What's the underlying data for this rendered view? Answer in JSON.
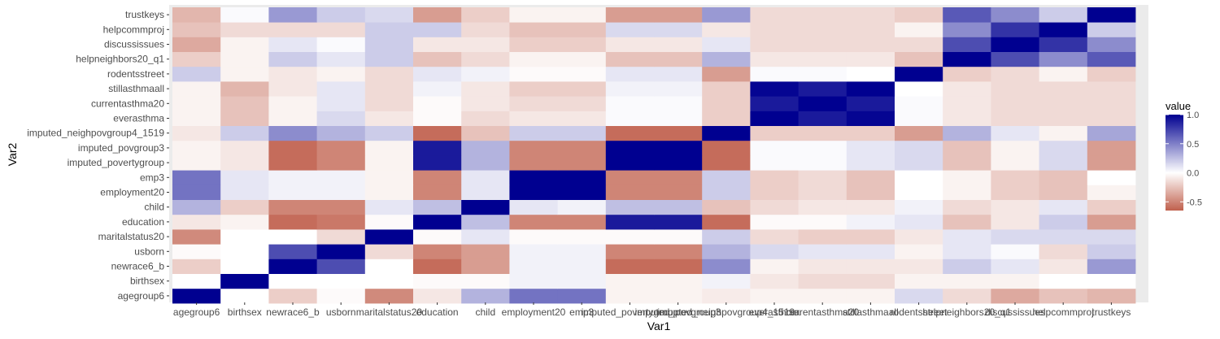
{
  "chart_data": {
    "type": "heatmap",
    "xlabel": "Var1",
    "ylabel": "Var2",
    "variables": [
      "agegroup6",
      "birthsex",
      "newrace6_b",
      "usborn",
      "maritalstatus20",
      "education",
      "child",
      "employment20",
      "emp3",
      "imputed_povertygroup",
      "imputed_povgroup3",
      "imputed_neighpovgroup4_1519",
      "everasthma",
      "currentasthma20",
      "stillasthmaall",
      "rodentsstreet",
      "helpneighbors20_q1",
      "discussissues",
      "helpcommproj",
      "trustkeys"
    ],
    "values": [
      [
        1.0,
        0.0,
        -0.2,
        -0.02,
        -0.48,
        -0.1,
        0.3,
        0.55,
        0.55,
        -0.05,
        -0.05,
        -0.08,
        -0.05,
        -0.05,
        -0.05,
        0.15,
        -0.15,
        -0.35,
        -0.25,
        -0.3
      ],
      [
        0.0,
        1.0,
        0.0,
        0.0,
        0.0,
        -0.02,
        -0.02,
        0.05,
        0.05,
        -0.05,
        -0.05,
        0.05,
        -0.1,
        -0.15,
        -0.15,
        -0.05,
        -0.05,
        -0.05,
        0.0,
        0.0
      ],
      [
        -0.2,
        0.0,
        1.0,
        0.7,
        0.0,
        -0.6,
        -0.4,
        0.05,
        0.05,
        -0.6,
        -0.6,
        0.45,
        -0.05,
        -0.1,
        -0.1,
        -0.1,
        0.2,
        0.1,
        -0.1,
        0.4
      ],
      [
        -0.02,
        0.0,
        0.7,
        1.0,
        -0.15,
        -0.5,
        -0.4,
        0.05,
        0.05,
        -0.5,
        -0.5,
        0.3,
        0.15,
        0.1,
        0.1,
        -0.05,
        0.1,
        0.02,
        -0.15,
        0.2
      ],
      [
        -0.48,
        0.0,
        0.0,
        -0.15,
        1.0,
        -0.02,
        0.1,
        -0.02,
        -0.02,
        -0.02,
        -0.02,
        0.2,
        -0.15,
        -0.2,
        -0.2,
        -0.1,
        0.1,
        0.15,
        0.15,
        0.15
      ],
      [
        -0.1,
        -0.05,
        -0.6,
        -0.55,
        -0.02,
        1.0,
        0.25,
        -0.5,
        -0.5,
        0.9,
        0.9,
        -0.6,
        -0.02,
        -0.02,
        0.05,
        0.1,
        -0.25,
        -0.1,
        0.2,
        -0.4
      ],
      [
        0.3,
        -0.2,
        -0.5,
        -0.5,
        0.1,
        0.25,
        1.0,
        0.1,
        0.05,
        0.25,
        0.25,
        -0.25,
        -0.15,
        -0.1,
        -0.1,
        0.05,
        -0.15,
        -0.1,
        0.1,
        -0.2
      ],
      [
        0.55,
        0.1,
        0.05,
        0.05,
        -0.05,
        -0.5,
        0.1,
        1.0,
        1.0,
        -0.5,
        -0.5,
        0.2,
        -0.2,
        -0.15,
        -0.25,
        0.0,
        -0.05,
        -0.2,
        -0.25,
        -0.05
      ],
      [
        0.55,
        0.1,
        0.05,
        0.05,
        -0.05,
        -0.5,
        0.1,
        1.0,
        1.0,
        -0.5,
        -0.5,
        0.2,
        -0.2,
        -0.15,
        -0.25,
        0.0,
        -0.05,
        -0.2,
        -0.25,
        0.0
      ],
      [
        -0.05,
        -0.1,
        -0.6,
        -0.5,
        -0.05,
        0.9,
        0.3,
        -0.5,
        -0.5,
        1.0,
        1.0,
        -0.6,
        0.02,
        0.02,
        0.1,
        0.15,
        -0.25,
        -0.05,
        0.15,
        -0.4
      ],
      [
        -0.05,
        -0.1,
        -0.6,
        -0.5,
        -0.05,
        0.9,
        0.3,
        -0.5,
        -0.5,
        1.0,
        1.0,
        -0.6,
        0.02,
        0.02,
        0.1,
        0.15,
        -0.25,
        -0.05,
        0.15,
        -0.4
      ],
      [
        -0.1,
        0.2,
        0.45,
        0.3,
        0.2,
        -0.6,
        -0.25,
        0.2,
        0.2,
        -0.6,
        -0.6,
        1.0,
        -0.2,
        -0.2,
        -0.2,
        -0.4,
        0.3,
        0.1,
        -0.05,
        0.35
      ],
      [
        -0.05,
        -0.25,
        -0.05,
        0.15,
        -0.1,
        -0.02,
        -0.15,
        -0.1,
        -0.1,
        0.02,
        0.02,
        -0.2,
        1.0,
        0.9,
        0.98,
        0.02,
        -0.1,
        -0.15,
        -0.15,
        -0.15
      ],
      [
        -0.05,
        -0.25,
        -0.05,
        0.1,
        -0.15,
        -0.02,
        -0.1,
        -0.15,
        -0.15,
        0.02,
        0.02,
        -0.2,
        0.9,
        1.0,
        0.9,
        0.02,
        -0.1,
        -0.15,
        -0.15,
        -0.15
      ],
      [
        -0.05,
        -0.3,
        -0.1,
        0.1,
        -0.15,
        0.05,
        -0.1,
        -0.2,
        -0.2,
        0.05,
        0.05,
        -0.2,
        0.98,
        0.9,
        1.0,
        0.0,
        -0.1,
        -0.15,
        -0.15,
        -0.15
      ],
      [
        0.2,
        -0.05,
        -0.1,
        -0.05,
        -0.15,
        0.1,
        0.05,
        -0.02,
        -0.02,
        0.1,
        0.1,
        -0.4,
        0.02,
        0.02,
        0.0,
        1.0,
        -0.2,
        -0.15,
        -0.05,
        -0.2
      ],
      [
        -0.2,
        -0.05,
        0.2,
        0.1,
        0.2,
        -0.25,
        -0.15,
        -0.05,
        -0.05,
        -0.25,
        -0.25,
        0.3,
        -0.1,
        -0.1,
        -0.1,
        -0.25,
        1.0,
        0.7,
        0.45,
        0.65
      ],
      [
        -0.35,
        -0.05,
        0.1,
        0.02,
        0.2,
        -0.1,
        -0.1,
        -0.2,
        -0.2,
        -0.1,
        -0.1,
        0.1,
        -0.15,
        -0.15,
        -0.15,
        -0.15,
        0.7,
        1.0,
        0.8,
        0.45
      ],
      [
        -0.25,
        -0.15,
        -0.15,
        -0.15,
        0.2,
        0.2,
        -0.15,
        -0.25,
        -0.25,
        0.15,
        0.15,
        -0.1,
        -0.15,
        -0.15,
        -0.15,
        -0.05,
        0.45,
        0.8,
        1.0,
        0.2
      ],
      [
        -0.3,
        0.02,
        0.4,
        0.2,
        0.15,
        -0.4,
        -0.2,
        -0.05,
        -0.05,
        -0.4,
        -0.4,
        0.4,
        -0.15,
        -0.15,
        -0.15,
        -0.2,
        0.65,
        0.45,
        0.2,
        1.0
      ]
    ],
    "color_scale": {
      "low": "#c0604d",
      "mid": "#ffffff",
      "high": "#000090",
      "midpoint": 0
    },
    "legend": {
      "title": "value",
      "placement": "right",
      "breaks": [
        1.0,
        0.5,
        0.0,
        -0.5
      ],
      "break_labels": [
        "1.0",
        "0.5",
        "0.0",
        "-0.5"
      ],
      "limits": [
        -0.65,
        1.0
      ]
    },
    "panel_background": "#ebebeb",
    "grid": true
  }
}
